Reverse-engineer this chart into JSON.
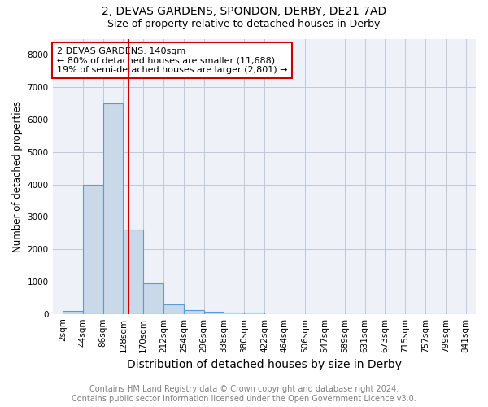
{
  "title1": "2, DEVAS GARDENS, SPONDON, DERBY, DE21 7AD",
  "title2": "Size of property relative to detached houses in Derby",
  "xlabel": "Distribution of detached houses by size in Derby",
  "ylabel": "Number of detached properties",
  "footer1": "Contains HM Land Registry data © Crown copyright and database right 2024.",
  "footer2": "Contains public sector information licensed under the Open Government Licence v3.0.",
  "annotation_line1": "2 DEVAS GARDENS: 140sqm",
  "annotation_line2": "← 80% of detached houses are smaller (11,688)",
  "annotation_line3": "19% of semi-detached houses are larger (2,801) →",
  "bar_values": [
    100,
    4000,
    6500,
    2600,
    950,
    300,
    120,
    70,
    50,
    50,
    0,
    0,
    0,
    0,
    0,
    0,
    0,
    0,
    0,
    0
  ],
  "bin_edges": [
    2,
    44,
    86,
    128,
    170,
    212,
    254,
    296,
    338,
    380,
    422,
    464,
    506,
    547,
    589,
    631,
    673,
    715,
    757,
    799,
    841
  ],
  "bin_labels": [
    "2sqm",
    "44sqm",
    "86sqm",
    "128sqm",
    "170sqm",
    "212sqm",
    "254sqm",
    "296sqm",
    "338sqm",
    "380sqm",
    "422sqm",
    "464sqm",
    "506sqm",
    "547sqm",
    "589sqm",
    "631sqm",
    "673sqm",
    "715sqm",
    "757sqm",
    "799sqm",
    "841sqm"
  ],
  "bar_color": "#c9d9e8",
  "bar_edge_color": "#5b9bd5",
  "red_line_x": 140,
  "red_line_color": "#cc0000",
  "annotation_box_color": "#cc0000",
  "ylim": [
    0,
    8500
  ],
  "yticks": [
    0,
    1000,
    2000,
    3000,
    4000,
    5000,
    6000,
    7000,
    8000
  ],
  "grid_color": "#c0c8d8",
  "background_color": "#eef2f8",
  "fig_background": "#ffffff",
  "title1_fontsize": 10,
  "title2_fontsize": 9,
  "xlabel_fontsize": 10,
  "ylabel_fontsize": 8.5,
  "tick_fontsize": 7.5,
  "annotation_fontsize": 8,
  "footer_fontsize": 7
}
